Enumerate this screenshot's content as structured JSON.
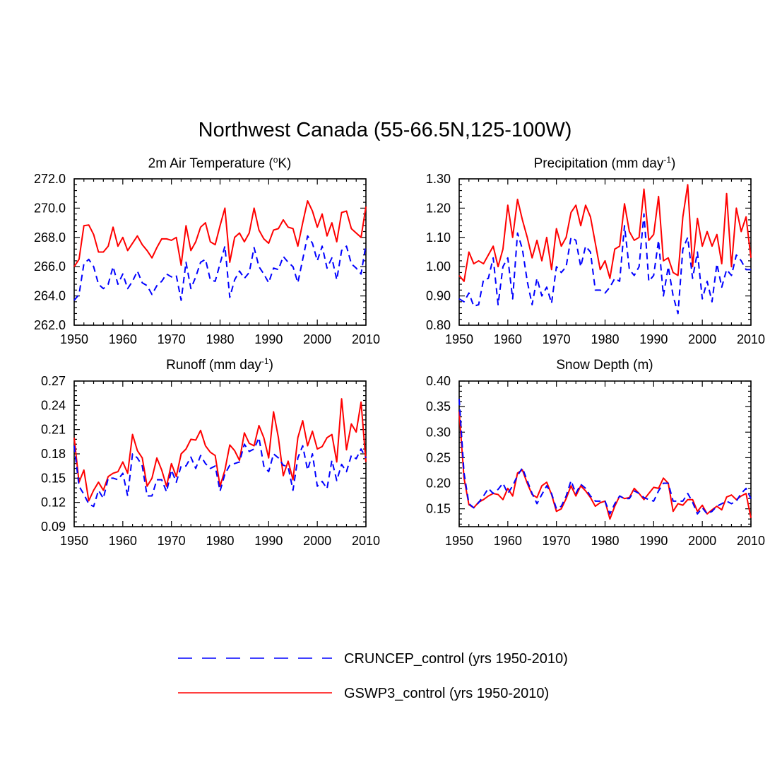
{
  "figure": {
    "title": "Northwest Canada (55-66.5N,125-100W)"
  },
  "legend": {
    "entries": [
      {
        "label": "CRUNCEP_control (yrs 1950-2010)",
        "color": "#0000ff",
        "dash": true
      },
      {
        "label": "GSWP3_control (yrs 1950-2010)",
        "color": "#ff0000",
        "dash": false
      }
    ],
    "placement": "bottom-center"
  },
  "chart_data": [
    {
      "type": "line",
      "title": "2m Air Temperature (",
      "title_sup": "o",
      "title_suffix": "K)",
      "xlim": [
        1950,
        2010
      ],
      "ylim": [
        262,
        272
      ],
      "xticks": [
        "1950",
        "1960",
        "1970",
        "1980",
        "1990",
        "2000",
        "2010"
      ],
      "yticks": [
        "262.0",
        "264.0",
        "266.0",
        "268.0",
        "270.0",
        "272.0"
      ],
      "ytick_values": [
        262,
        264,
        266,
        268,
        270,
        272
      ],
      "x_start": 1950,
      "series": [
        {
          "name": "GSWP3_control (yrs 1950-2010)",
          "color": "#ff0000",
          "dash": false,
          "values": [
            266.0,
            266.5,
            268.8,
            268.85,
            268.2,
            267.0,
            267.0,
            267.4,
            268.7,
            267.4,
            268.0,
            267.1,
            267.6,
            268.1,
            267.5,
            267.1,
            266.6,
            267.3,
            267.9,
            267.9,
            267.8,
            268.0,
            266.1,
            268.8,
            267.1,
            267.7,
            268.7,
            269.0,
            267.7,
            267.5,
            268.8,
            270.0,
            266.3,
            268.0,
            268.3,
            267.7,
            268.3,
            270.0,
            268.5,
            267.9,
            267.6,
            268.5,
            268.6,
            269.2,
            268.7,
            268.6,
            267.4,
            269.0,
            270.5,
            269.8,
            268.7,
            269.6,
            268.1,
            269.0,
            267.7,
            269.7,
            269.8,
            268.6,
            268.3,
            268.0,
            270.1
          ]
        },
        {
          "name": "CRUNCEP_control (yrs 1950-2010)",
          "color": "#0000ff",
          "dash": true,
          "values": [
            263.7,
            264.1,
            266.2,
            266.5,
            266.0,
            264.8,
            264.5,
            264.8,
            266.0,
            264.8,
            265.5,
            264.5,
            265.0,
            265.7,
            264.9,
            264.7,
            264.1,
            264.7,
            265.0,
            265.5,
            265.3,
            265.4,
            263.7,
            266.3,
            264.5,
            265.3,
            266.3,
            266.5,
            265.1,
            265.0,
            266.2,
            267.4,
            263.9,
            265.1,
            265.7,
            265.2,
            265.6,
            267.3,
            266.0,
            265.5,
            264.9,
            265.9,
            265.8,
            266.7,
            266.3,
            266.0,
            264.9,
            266.5,
            268.1,
            267.6,
            266.4,
            267.4,
            265.9,
            266.6,
            265.1,
            267.1,
            267.4,
            266.2,
            265.9,
            265.5,
            267.5
          ]
        }
      ]
    },
    {
      "type": "line",
      "title": "Precipitation (mm day",
      "title_sup": "-1",
      "title_suffix": ")",
      "xlim": [
        1950,
        2010
      ],
      "ylim": [
        0.8,
        1.3
      ],
      "xticks": [
        "1950",
        "1960",
        "1970",
        "1980",
        "1990",
        "2000",
        "2010"
      ],
      "yticks": [
        "0.80",
        "0.90",
        "1.00",
        "1.10",
        "1.20",
        "1.30"
      ],
      "ytick_values": [
        0.8,
        0.9,
        1.0,
        1.1,
        1.2,
        1.3
      ],
      "x_start": 1950,
      "series": [
        {
          "name": "GSWP3_control (yrs 1950-2010)",
          "color": "#ff0000",
          "dash": false,
          "values": [
            0.97,
            0.95,
            1.05,
            1.01,
            1.02,
            1.01,
            1.04,
            1.07,
            1.0,
            1.06,
            1.21,
            1.1,
            1.23,
            1.16,
            1.1,
            1.03,
            1.09,
            1.02,
            1.1,
            0.99,
            1.13,
            1.07,
            1.1,
            1.185,
            1.21,
            1.14,
            1.21,
            1.17,
            1.08,
            0.99,
            1.02,
            0.96,
            1.06,
            1.07,
            1.215,
            1.12,
            1.09,
            1.1,
            1.265,
            1.09,
            1.11,
            1.24,
            1.02,
            1.03,
            0.98,
            0.97,
            1.17,
            1.28,
            1.0,
            1.165,
            1.07,
            1.12,
            1.07,
            1.11,
            1.01,
            1.25,
            1.0,
            1.2,
            1.12,
            1.17,
            1.03
          ]
        },
        {
          "name": "CRUNCEP_control (yrs 1950-2010)",
          "color": "#0000ff",
          "dash": true,
          "values": [
            0.89,
            0.88,
            0.91,
            0.865,
            0.87,
            0.955,
            0.96,
            1.03,
            0.87,
            1.0,
            1.03,
            0.89,
            1.115,
            1.06,
            0.95,
            0.87,
            0.96,
            0.9,
            0.93,
            0.875,
            1.0,
            0.98,
            1.0,
            1.1,
            1.09,
            1.0,
            1.07,
            1.05,
            0.92,
            0.92,
            0.91,
            0.93,
            0.96,
            0.95,
            1.14,
            0.99,
            0.97,
            1.0,
            1.18,
            0.95,
            0.97,
            1.09,
            0.9,
            1.0,
            0.9,
            0.84,
            1.06,
            1.1,
            0.96,
            1.05,
            0.89,
            0.95,
            0.88,
            1.01,
            0.93,
            0.99,
            0.97,
            1.04,
            1.02,
            0.99,
            0.99
          ]
        }
      ]
    },
    {
      "type": "line",
      "title": "Runoff (mm day",
      "title_sup": "-1",
      "title_suffix": ")",
      "xlim": [
        1950,
        2010
      ],
      "ylim": [
        0.09,
        0.27
      ],
      "xticks": [
        "1950",
        "1960",
        "1970",
        "1980",
        "1990",
        "2000",
        "2010"
      ],
      "yticks": [
        "0.09",
        "0.12",
        "0.15",
        "0.18",
        "0.21",
        "0.24",
        "0.27"
      ],
      "ytick_values": [
        0.09,
        0.12,
        0.15,
        0.18,
        0.21,
        0.24,
        0.27
      ],
      "x_start": 1950,
      "series": [
        {
          "name": "GSWP3_control (yrs 1950-2010)",
          "color": "#ff0000",
          "dash": false,
          "values": [
            0.2,
            0.145,
            0.16,
            0.122,
            0.135,
            0.145,
            0.135,
            0.152,
            0.156,
            0.158,
            0.17,
            0.156,
            0.204,
            0.184,
            0.175,
            0.14,
            0.15,
            0.175,
            0.16,
            0.14,
            0.168,
            0.152,
            0.18,
            0.186,
            0.198,
            0.197,
            0.209,
            0.19,
            0.182,
            0.178,
            0.14,
            0.16,
            0.191,
            0.184,
            0.172,
            0.206,
            0.193,
            0.19,
            0.215,
            0.2,
            0.175,
            0.232,
            0.2,
            0.153,
            0.171,
            0.148,
            0.2,
            0.221,
            0.19,
            0.208,
            0.186,
            0.189,
            0.2,
            0.204,
            0.17,
            0.248,
            0.185,
            0.217,
            0.207,
            0.244,
            0.17
          ]
        },
        {
          "name": "CRUNCEP_control (yrs 1950-2010)",
          "color": "#0000ff",
          "dash": true,
          "values": [
            0.19,
            0.14,
            0.13,
            0.118,
            0.115,
            0.135,
            0.125,
            0.15,
            0.15,
            0.148,
            0.156,
            0.128,
            0.18,
            0.175,
            0.165,
            0.128,
            0.128,
            0.148,
            0.148,
            0.133,
            0.16,
            0.145,
            0.165,
            0.165,
            0.176,
            0.162,
            0.178,
            0.168,
            0.162,
            0.165,
            0.134,
            0.155,
            0.166,
            0.168,
            0.17,
            0.192,
            0.183,
            0.186,
            0.2,
            0.165,
            0.158,
            0.18,
            0.175,
            0.166,
            0.164,
            0.135,
            0.175,
            0.19,
            0.16,
            0.18,
            0.14,
            0.146,
            0.137,
            0.172,
            0.147,
            0.167,
            0.158,
            0.178,
            0.174,
            0.186,
            0.175
          ]
        }
      ]
    },
    {
      "type": "line",
      "title": "Snow Depth (m)",
      "title_sup": "",
      "title_suffix": "",
      "xlim": [
        1950,
        2010
      ],
      "ylim": [
        0.115,
        0.4
      ],
      "xticks": [
        "1950",
        "1960",
        "1970",
        "1980",
        "1990",
        "2000",
        "2010"
      ],
      "yticks": [
        "0.15",
        "0.20",
        "0.25",
        "0.30",
        "0.35",
        "0.40"
      ],
      "ytick_values": [
        0.15,
        0.2,
        0.25,
        0.3,
        0.35,
        0.4
      ],
      "x_start": 1950,
      "series": [
        {
          "name": "GSWP3_control (yrs 1950-2010)",
          "color": "#ff0000",
          "dash": false,
          "values": [
            0.34,
            0.21,
            0.158,
            0.152,
            0.163,
            0.168,
            0.175,
            0.18,
            0.178,
            0.168,
            0.19,
            0.175,
            0.22,
            0.226,
            0.2,
            0.178,
            0.172,
            0.195,
            0.202,
            0.178,
            0.145,
            0.15,
            0.17,
            0.195,
            0.175,
            0.195,
            0.185,
            0.172,
            0.155,
            0.162,
            0.165,
            0.13,
            0.155,
            0.175,
            0.17,
            0.172,
            0.19,
            0.18,
            0.168,
            0.18,
            0.192,
            0.19,
            0.21,
            0.2,
            0.145,
            0.16,
            0.157,
            0.168,
            0.168,
            0.145,
            0.157,
            0.14,
            0.148,
            0.155,
            0.148,
            0.173,
            0.177,
            0.168,
            0.175,
            0.18,
            0.132
          ]
        },
        {
          "name": "CRUNCEP_control (yrs 1950-2010)",
          "color": "#0000ff",
          "dash": true,
          "values": [
            0.365,
            0.22,
            0.16,
            0.152,
            0.162,
            0.175,
            0.19,
            0.18,
            0.188,
            0.2,
            0.18,
            0.195,
            0.215,
            0.23,
            0.205,
            0.18,
            0.16,
            0.178,
            0.195,
            0.18,
            0.15,
            0.155,
            0.175,
            0.205,
            0.18,
            0.198,
            0.19,
            0.175,
            0.165,
            0.165,
            0.165,
            0.14,
            0.16,
            0.175,
            0.17,
            0.17,
            0.185,
            0.18,
            0.172,
            0.168,
            0.165,
            0.185,
            0.2,
            0.2,
            0.165,
            0.165,
            0.165,
            0.18,
            0.163,
            0.14,
            0.152,
            0.14,
            0.145,
            0.155,
            0.16,
            0.165,
            0.16,
            0.165,
            0.18,
            0.19,
            0.17
          ]
        }
      ]
    }
  ]
}
